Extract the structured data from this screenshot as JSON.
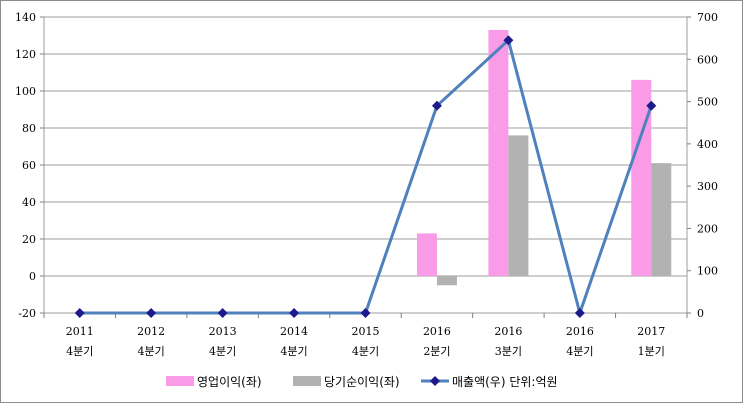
{
  "chart_data": {
    "type": "bar+line",
    "categories": [
      [
        "2011",
        "4분기"
      ],
      [
        "2012",
        "4분기"
      ],
      [
        "2013",
        "4분기"
      ],
      [
        "2014",
        "4분기"
      ],
      [
        "2015",
        "4분기"
      ],
      [
        "2016",
        "2분기"
      ],
      [
        "2016",
        "3분기"
      ],
      [
        "2016",
        "4분기"
      ],
      [
        "2017",
        "1분기"
      ]
    ],
    "left_axis": {
      "min": -20,
      "max": 140,
      "step": 20,
      "ticks": [
        "-20",
        "0",
        "20",
        "40",
        "60",
        "80",
        "100",
        "120",
        "140"
      ]
    },
    "right_axis": {
      "min": 0,
      "max": 700,
      "step": 100,
      "ticks": [
        "0",
        "100",
        "200",
        "300",
        "400",
        "500",
        "600",
        "700"
      ]
    },
    "series": [
      {
        "name": "영업이익(좌)",
        "type": "bar",
        "axis": "left",
        "color": "#f99be6",
        "values": [
          null,
          null,
          null,
          null,
          null,
          23,
          133,
          null,
          106
        ]
      },
      {
        "name": "당기순이익(좌)",
        "type": "bar",
        "axis": "left",
        "color": "#b2b2b2",
        "values": [
          null,
          null,
          null,
          null,
          null,
          -5,
          76,
          null,
          61
        ]
      },
      {
        "name": "매출액(우)",
        "type": "line",
        "axis": "right",
        "color": "#4f81bd",
        "marker_color": "#1f1a8c",
        "values": [
          0,
          0,
          0,
          0,
          0,
          490,
          645,
          0,
          490
        ]
      }
    ],
    "legend_note": "단위:억원"
  }
}
